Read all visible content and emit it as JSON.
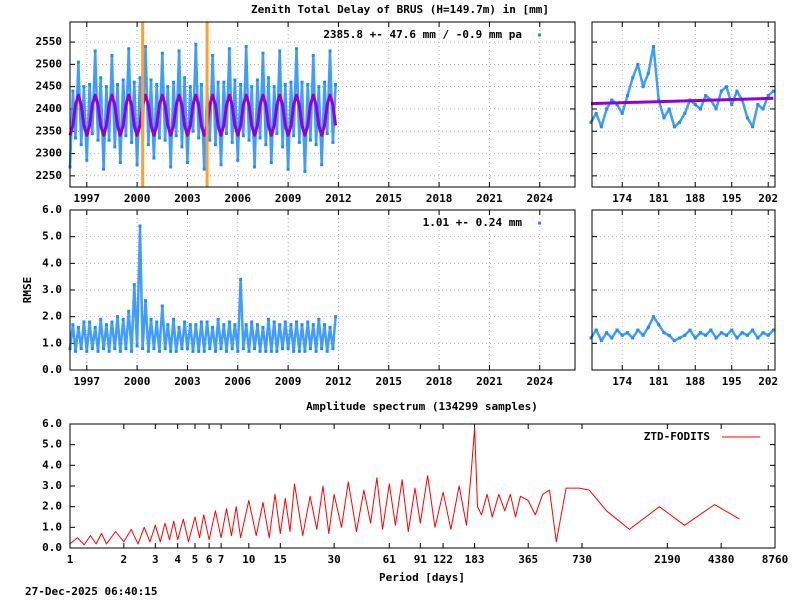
{
  "chart_data": [
    {
      "type": "scatter",
      "title": "Zenith Total Delay of BRUS (H=149.7m) in [mm]",
      "x": [
        1996,
        1996.17,
        1996.33,
        1996.5,
        1996.67,
        1996.83,
        1997,
        1997.17,
        1997.33,
        1997.5,
        1997.67,
        1997.83,
        1998,
        1998.17,
        1998.33,
        1998.5,
        1998.67,
        1998.83,
        1999,
        1999.17,
        1999.33,
        1999.5,
        1999.67,
        1999.83,
        2000,
        2000.17,
        2000.33,
        2000.5,
        2000.67,
        2000.83,
        2001,
        2001.17,
        2001.33,
        2001.5,
        2001.67,
        2001.83,
        2002,
        2002.17,
        2002.33,
        2002.5,
        2002.67,
        2002.83,
        2003,
        2003.17,
        2003.33,
        2003.5,
        2003.67,
        2003.83,
        2004,
        2004.17,
        2004.33,
        2004.5,
        2004.67,
        2004.83,
        2005,
        2005.17,
        2005.33,
        2005.5,
        2005.67,
        2005.83,
        2006,
        2006.17,
        2006.33,
        2006.5,
        2006.67,
        2006.83,
        2007,
        2007.17,
        2007.33,
        2007.5,
        2007.67,
        2007.83,
        2008,
        2008.17,
        2008.33,
        2008.5,
        2008.67,
        2008.83,
        2009,
        2009.17,
        2009.33,
        2009.5,
        2009.67,
        2009.83,
        2010,
        2010.17,
        2010.33,
        2010.5,
        2010.67,
        2010.83,
        2011,
        2011.17,
        2011.33,
        2011.5,
        2011.67,
        2011.83
      ],
      "series": [
        {
          "name": "2385.8 +-  47.6 mm / -0.9 mm pa",
          "color": "#1e8cff",
          "mode": "points",
          "values": [
            2270,
            2440,
            2335,
            2505,
            2320,
            2450,
            2285,
            2455,
            2345,
            2530,
            2330,
            2470,
            2265,
            2450,
            2330,
            2520,
            2315,
            2455,
            2280,
            2465,
            2340,
            2535,
            2325,
            2460,
            2275,
            2470,
            2345,
            2540,
            2320,
            2465,
            2290,
            2455,
            2335,
            2525,
            2330,
            2450,
            2270,
            2460,
            2340,
            2530,
            2315,
            2470,
            2280,
            2450,
            2350,
            2545,
            2335,
            2455,
            2265,
            2445,
            2330,
            2520,
            2320,
            2460,
            2275,
            2460,
            2345,
            2535,
            2325,
            2465,
            2285,
            2455,
            2340,
            2540,
            2330,
            2450,
            2270,
            2465,
            2335,
            2525,
            2320,
            2470,
            2280,
            2450,
            2345,
            2530,
            2315,
            2455,
            2265,
            2460,
            2340,
            2535,
            2325,
            2460,
            2260,
            2455,
            2330,
            2520,
            2320,
            2450,
            2275,
            2460,
            2345,
            2530,
            2325,
            2455
          ]
        },
        {
          "color": "#9400d3",
          "mode": "line",
          "values": [
            2341,
            2363,
            2409,
            2431,
            2409,
            2363,
            2341,
            2363,
            2409,
            2431,
            2409,
            2363,
            2341,
            2363,
            2409,
            2431,
            2409,
            2363,
            2341,
            2363,
            2409,
            2431,
            2409,
            2363,
            2341,
            2363,
            2409,
            2431,
            2409,
            2363,
            2341,
            2363,
            2409,
            2431,
            2409,
            2363,
            2341,
            2363,
            2409,
            2431,
            2409,
            2363,
            2341,
            2363,
            2409,
            2431,
            2409,
            2363,
            2341,
            2363,
            2409,
            2431,
            2409,
            2363,
            2341,
            2363,
            2409,
            2431,
            2409,
            2363,
            2341,
            2363,
            2409,
            2431,
            2409,
            2363,
            2341,
            2363,
            2409,
            2431,
            2409,
            2363,
            2341,
            2363,
            2409,
            2431,
            2409,
            2363,
            2341,
            2363,
            2409,
            2431,
            2409,
            2363,
            2341,
            2363,
            2409,
            2431,
            2409,
            2363,
            2341,
            2363,
            2409,
            2431,
            2409,
            2363
          ]
        }
      ],
      "vlines": [
        2000.33,
        2004.17
      ],
      "vline_color": "#ffa030",
      "xlim": [
        1996,
        2026.1
      ],
      "ylim": [
        2225,
        2595
      ],
      "xticks": [
        1997,
        2000,
        2003,
        2006,
        2009,
        2012,
        2015,
        2018,
        2021,
        2024
      ],
      "yticks": [
        2250,
        2300,
        2350,
        2400,
        2450,
        2500,
        2550
      ],
      "grid": true
    },
    {
      "type": "scatter",
      "x": [
        168,
        169,
        170,
        171,
        172,
        173,
        174,
        175,
        176,
        177,
        178,
        179,
        180,
        181,
        182,
        183,
        184,
        185,
        186,
        187,
        188,
        189,
        190,
        191,
        192,
        193,
        194,
        195,
        196,
        197,
        198,
        199,
        200,
        201,
        202,
        203
      ],
      "series": [
        {
          "color": "#1e8cff",
          "mode": "points",
          "values": [
            2370,
            2390,
            2360,
            2400,
            2420,
            2410,
            2390,
            2430,
            2470,
            2500,
            2450,
            2480,
            2540,
            2420,
            2380,
            2400,
            2360,
            2370,
            2390,
            2420,
            2410,
            2400,
            2430,
            2420,
            2400,
            2440,
            2450,
            2410,
            2440,
            2420,
            2380,
            2360,
            2410,
            2400,
            2430,
            2440
          ]
        },
        {
          "color": "#9400d3",
          "mode": "line",
          "x": [
            168,
            203
          ],
          "values": [
            2412,
            2424
          ]
        }
      ],
      "xlim": [
        168.2,
        203.3
      ],
      "ylim": [
        2225,
        2595
      ],
      "xticks": [
        174,
        181,
        188,
        195,
        202
      ],
      "yticks": [
        2250,
        2300,
        2350,
        2400,
        2450,
        2500,
        2550
      ],
      "grid": true
    },
    {
      "type": "scatter",
      "ylabel": "RMSE",
      "x": [
        1996,
        1996.17,
        1996.33,
        1996.5,
        1996.67,
        1996.83,
        1997,
        1997.17,
        1997.33,
        1997.5,
        1997.67,
        1997.83,
        1998,
        1998.17,
        1998.33,
        1998.5,
        1998.67,
        1998.83,
        1999,
        1999.17,
        1999.33,
        1999.5,
        1999.67,
        1999.83,
        2000,
        2000.17,
        2000.33,
        2000.5,
        2000.67,
        2000.83,
        2001,
        2001.17,
        2001.33,
        2001.5,
        2001.67,
        2001.83,
        2002,
        2002.17,
        2002.33,
        2002.5,
        2002.67,
        2002.83,
        2003,
        2003.17,
        2003.33,
        2003.5,
        2003.67,
        2003.83,
        2004,
        2004.17,
        2004.33,
        2004.5,
        2004.67,
        2004.83,
        2005,
        2005.17,
        2005.33,
        2005.5,
        2005.67,
        2005.83,
        2006,
        2006.17,
        2006.33,
        2006.5,
        2006.67,
        2006.83,
        2007,
        2007.17,
        2007.33,
        2007.5,
        2007.67,
        2007.83,
        2008,
        2008.17,
        2008.33,
        2008.5,
        2008.67,
        2008.83,
        2009,
        2009.17,
        2009.33,
        2009.5,
        2009.67,
        2009.83,
        2010,
        2010.17,
        2010.33,
        2010.5,
        2010.67,
        2010.83,
        2011,
        2011.17,
        2011.33,
        2011.5,
        2011.67,
        2011.83
      ],
      "series": [
        {
          "name": "1.01 +-  0.24 mm",
          "color": "#1e8cff",
          "mode": "points",
          "values": [
            0.8,
            1.7,
            0.7,
            1.6,
            0.8,
            1.8,
            0.7,
            1.8,
            0.8,
            1.6,
            0.7,
            1.9,
            0.8,
            1.7,
            0.7,
            1.8,
            0.8,
            2.0,
            0.7,
            1.9,
            0.8,
            2.2,
            0.7,
            3.2,
            0.9,
            5.4,
            0.8,
            2.6,
            0.7,
            1.9,
            0.8,
            1.8,
            0.7,
            2.4,
            0.8,
            1.7,
            0.7,
            1.9,
            0.7,
            1.6,
            0.8,
            1.8,
            0.8,
            1.7,
            0.7,
            1.7,
            0.7,
            1.8,
            0.7,
            1.8,
            0.8,
            1.6,
            0.7,
            1.9,
            0.8,
            1.7,
            0.7,
            1.8,
            0.8,
            1.7,
            0.7,
            3.4,
            0.8,
            1.7,
            0.7,
            1.8,
            0.8,
            1.7,
            0.7,
            1.6,
            0.7,
            1.9,
            0.7,
            1.8,
            0.7,
            1.7,
            0.8,
            1.8,
            0.8,
            1.7,
            0.7,
            1.8,
            0.7,
            1.7,
            0.7,
            1.8,
            0.8,
            1.7,
            0.7,
            1.9,
            0.8,
            1.7,
            0.7,
            1.6,
            0.8,
            2.0
          ]
        }
      ],
      "xlim": [
        1996,
        2026.1
      ],
      "ylim": [
        0,
        6
      ],
      "xticks": [
        1997,
        2000,
        2003,
        2006,
        2009,
        2012,
        2015,
        2018,
        2021,
        2024
      ],
      "yticks": [
        {
          "value": 0,
          "label": "0.0"
        },
        {
          "value": 1,
          "label": "1.0"
        },
        {
          "value": 2,
          "label": "2.0"
        },
        {
          "value": 3,
          "label": "3.0"
        },
        {
          "value": 4,
          "label": "4.0"
        },
        {
          "value": 5,
          "label": "5.0"
        },
        {
          "value": 6,
          "label": "6.0"
        }
      ],
      "grid": true
    },
    {
      "type": "scatter",
      "x": [
        168,
        169,
        170,
        171,
        172,
        173,
        174,
        175,
        176,
        177,
        178,
        179,
        180,
        181,
        182,
        183,
        184,
        185,
        186,
        187,
        188,
        189,
        190,
        191,
        192,
        193,
        194,
        195,
        196,
        197,
        198,
        199,
        200,
        201,
        202,
        203
      ],
      "series": [
        {
          "color": "#1e8cff",
          "mode": "points",
          "values": [
            1.2,
            1.5,
            1.1,
            1.4,
            1.2,
            1.5,
            1.3,
            1.4,
            1.2,
            1.5,
            1.3,
            1.6,
            2.0,
            1.7,
            1.4,
            1.3,
            1.1,
            1.2,
            1.3,
            1.5,
            1.2,
            1.4,
            1.3,
            1.5,
            1.2,
            1.4,
            1.3,
            1.5,
            1.2,
            1.4,
            1.3,
            1.5,
            1.2,
            1.4,
            1.3,
            1.5
          ]
        }
      ],
      "xlim": [
        168.2,
        203.3
      ],
      "ylim": [
        0,
        6
      ],
      "xticks": [
        174,
        181,
        188,
        195,
        202
      ],
      "yticks": [
        0,
        1,
        2,
        3,
        4,
        5,
        6
      ],
      "grid": true
    },
    {
      "type": "line",
      "title": "Amplitude spectrum (134299 samples)",
      "xlabel": "Period [days]",
      "xscale": "log",
      "x": [
        1,
        1.1,
        1.2,
        1.3,
        1.4,
        1.5,
        1.6,
        1.8,
        2,
        2.2,
        2.4,
        2.6,
        2.8,
        3,
        3.2,
        3.4,
        3.6,
        3.8,
        4,
        4.3,
        4.6,
        5,
        5.3,
        5.6,
        6,
        6.5,
        7,
        7.5,
        8,
        8.5,
        9,
        10,
        11,
        12,
        13,
        14,
        15,
        16,
        17,
        18,
        20,
        22,
        24,
        26,
        28,
        30,
        33,
        36,
        40,
        44,
        48,
        52,
        56,
        61,
        66,
        72,
        78,
        85,
        91,
        100,
        110,
        122,
        135,
        150,
        165,
        175,
        183,
        190,
        200,
        215,
        230,
        250,
        270,
        290,
        310,
        330,
        365,
        400,
        440,
        480,
        524,
        595,
        704,
        801,
        1000,
        1343,
        1976,
        2731,
        4020,
        5556
      ],
      "series": [
        {
          "name": "ZTD-FODITS",
          "color": "#ff0000",
          "values": [
            0.2,
            0.5,
            0.15,
            0.6,
            0.2,
            0.7,
            0.2,
            0.8,
            0.3,
            0.9,
            0.2,
            1.0,
            0.3,
            1.1,
            0.3,
            1.2,
            0.4,
            1.3,
            0.4,
            1.4,
            0.3,
            1.5,
            0.5,
            1.6,
            0.4,
            1.8,
            0.5,
            1.9,
            0.6,
            2.0,
            0.5,
            2.3,
            0.6,
            2.2,
            0.5,
            2.6,
            0.7,
            2.4,
            0.8,
            3.1,
            0.6,
            2.5,
            0.9,
            3.0,
            0.7,
            2.6,
            1.0,
            3.2,
            0.8,
            2.8,
            1.2,
            3.4,
            0.9,
            3.1,
            1.1,
            3.3,
            0.8,
            2.9,
            1.2,
            3.5,
            1.0,
            2.7,
            0.9,
            3.0,
            1.1,
            3.6,
            5.8,
            2.0,
            1.6,
            2.6,
            1.5,
            2.6,
            1.8,
            2.6,
            1.5,
            2.5,
            2.3,
            1.6,
            2.6,
            2.8,
            0.3,
            2.9,
            2.9,
            2.8,
            1.8,
            0.9,
            2.0,
            1.1,
            2.1,
            1.4
          ]
        }
      ],
      "xlim": [
        1,
        8760
      ],
      "ylim": [
        0,
        6
      ],
      "xticks": [
        1,
        2,
        3,
        4,
        5,
        6,
        7,
        10,
        15,
        30,
        61,
        91,
        122,
        183,
        365,
        730,
        2190,
        4380,
        8760
      ],
      "yticks": [
        {
          "value": 0,
          "label": "0.0"
        },
        {
          "value": 1,
          "label": "1.0"
        },
        {
          "value": 2,
          "label": "2.0"
        },
        {
          "value": 3,
          "label": "3.0"
        },
        {
          "value": 4,
          "label": "4.0"
        },
        {
          "value": 5,
          "label": "5.0"
        },
        {
          "value": 6,
          "label": "6.0"
        }
      ],
      "legend": "top-right",
      "grid": false
    }
  ],
  "footer": "27-Dec-2025 06:40:15"
}
